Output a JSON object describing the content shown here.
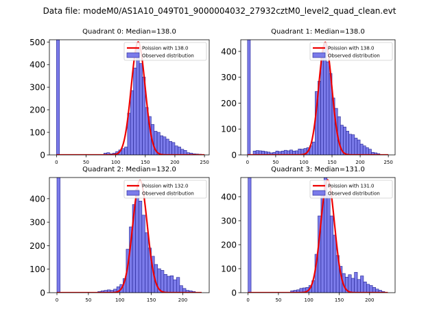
{
  "figure_title": "Data file: modeM0/AS1A10_049T01_9000004032_27932cztM0_level2_quad_clean.evt",
  "colors": {
    "bar_fill": "#7b7bea",
    "bar_edge": "#1f1f8f",
    "line": "#ee0000",
    "axis": "#000000",
    "legend_edge": "#cccccc"
  },
  "chart_data": [
    {
      "type": "bar",
      "title": "Quadrant 0: Median=138.0",
      "legend": [
        "Poission with 138.0",
        "Observed distribution"
      ],
      "legend_position": "top-right",
      "xlim": [
        -12,
        258
      ],
      "ylim": [
        0,
        510
      ],
      "xticks": [
        0,
        50,
        100,
        150,
        200,
        250
      ],
      "yticks": [
        0,
        100,
        200,
        300,
        400,
        500
      ],
      "bin_width": 5,
      "bins": [
        [
          0,
          510
        ],
        [
          80,
          8
        ],
        [
          85,
          10
        ],
        [
          90,
          5
        ],
        [
          95,
          8
        ],
        [
          100,
          15
        ],
        [
          105,
          22
        ],
        [
          110,
          28
        ],
        [
          115,
          35
        ],
        [
          120,
          185
        ],
        [
          125,
          285
        ],
        [
          130,
          385
        ],
        [
          135,
          470
        ],
        [
          140,
          405
        ],
        [
          145,
          345
        ],
        [
          150,
          210
        ],
        [
          155,
          170
        ],
        [
          160,
          135
        ],
        [
          165,
          105
        ],
        [
          170,
          100
        ],
        [
          175,
          85
        ],
        [
          180,
          80
        ],
        [
          185,
          70
        ],
        [
          190,
          60
        ],
        [
          195,
          55
        ],
        [
          200,
          40
        ],
        [
          205,
          35
        ],
        [
          210,
          25
        ],
        [
          215,
          20
        ],
        [
          220,
          10
        ],
        [
          225,
          8
        ],
        [
          230,
          5
        ],
        [
          235,
          4
        ],
        [
          240,
          3
        ]
      ],
      "poisson": {
        "mean": 138.0,
        "peak": 500,
        "sigma": 11.7,
        "x_from": 0,
        "x_to": 250
      }
    },
    {
      "type": "bar",
      "title": "Quadrant 1: Median=138.0",
      "legend": [
        "Poission with 138.0",
        "Observed distribution"
      ],
      "legend_position": "top-right",
      "xlim": [
        -12,
        262
      ],
      "ylim": [
        0,
        445
      ],
      "xticks": [
        0,
        50,
        100,
        150,
        200,
        250
      ],
      "yticks": [
        0,
        100,
        200,
        300,
        400
      ],
      "bin_width": 5,
      "bins": [
        [
          0,
          445
        ],
        [
          10,
          15
        ],
        [
          15,
          17
        ],
        [
          20,
          16
        ],
        [
          25,
          15
        ],
        [
          30,
          13
        ],
        [
          35,
          11
        ],
        [
          40,
          8
        ],
        [
          45,
          10
        ],
        [
          50,
          15
        ],
        [
          55,
          13
        ],
        [
          60,
          15
        ],
        [
          65,
          18
        ],
        [
          70,
          16
        ],
        [
          75,
          19
        ],
        [
          80,
          15
        ],
        [
          85,
          16
        ],
        [
          90,
          23
        ],
        [
          95,
          22
        ],
        [
          100,
          25
        ],
        [
          105,
          28
        ],
        [
          110,
          35
        ],
        [
          115,
          50
        ],
        [
          120,
          245
        ],
        [
          125,
          285
        ],
        [
          130,
          375
        ],
        [
          135,
          430
        ],
        [
          140,
          360
        ],
        [
          145,
          315
        ],
        [
          150,
          220
        ],
        [
          155,
          180
        ],
        [
          160,
          148
        ],
        [
          165,
          115
        ],
        [
          170,
          108
        ],
        [
          175,
          92
        ],
        [
          180,
          80
        ],
        [
          185,
          78
        ],
        [
          190,
          65
        ],
        [
          195,
          58
        ],
        [
          200,
          42
        ],
        [
          205,
          35
        ],
        [
          210,
          28
        ],
        [
          215,
          22
        ],
        [
          220,
          10
        ],
        [
          225,
          8
        ],
        [
          230,
          5
        ]
      ],
      "poisson": {
        "mean": 138.0,
        "peak": 435,
        "sigma": 11.7,
        "x_from": 0,
        "x_to": 250
      }
    },
    {
      "type": "bar",
      "title": "Quadrant 2: Median=132.0",
      "legend": [
        "Poission with 132.0",
        "Observed distribution"
      ],
      "legend_position": "top-right",
      "xlim": [
        -12,
        242
      ],
      "ylim": [
        0,
        490
      ],
      "xticks": [
        0,
        50,
        100,
        150,
        200
      ],
      "yticks": [
        0,
        100,
        200,
        300,
        400
      ],
      "bin_width": 5,
      "bins": [
        [
          0,
          490
        ],
        [
          65,
          5
        ],
        [
          70,
          8
        ],
        [
          75,
          10
        ],
        [
          80,
          12
        ],
        [
          85,
          10
        ],
        [
          90,
          15
        ],
        [
          95,
          25
        ],
        [
          100,
          35
        ],
        [
          105,
          60
        ],
        [
          110,
          185
        ],
        [
          115,
          280
        ],
        [
          120,
          375
        ],
        [
          125,
          440
        ],
        [
          130,
          390
        ],
        [
          135,
          330
        ],
        [
          140,
          255
        ],
        [
          145,
          190
        ],
        [
          150,
          155
        ],
        [
          155,
          120
        ],
        [
          160,
          102
        ],
        [
          165,
          95
        ],
        [
          170,
          78
        ],
        [
          175,
          70
        ],
        [
          180,
          72
        ],
        [
          185,
          55
        ],
        [
          190,
          65
        ],
        [
          195,
          30
        ],
        [
          200,
          18
        ],
        [
          205,
          10
        ],
        [
          210,
          8
        ],
        [
          215,
          5
        ]
      ],
      "poisson": {
        "mean": 132.0,
        "peak": 478,
        "sigma": 11.5,
        "x_from": 0,
        "x_to": 230
      }
    },
    {
      "type": "bar",
      "title": "Quadrant 3: Median=131.0",
      "legend": [
        "Poission with 131.0",
        "Observed distribution"
      ],
      "legend_position": "top-right",
      "xlim": [
        -12,
        242
      ],
      "ylim": [
        0,
        480
      ],
      "xticks": [
        0,
        50,
        100,
        150,
        200
      ],
      "yticks": [
        0,
        100,
        200,
        300,
        400
      ],
      "bin_width": 5,
      "bins": [
        [
          0,
          480
        ],
        [
          70,
          8
        ],
        [
          75,
          10
        ],
        [
          80,
          12
        ],
        [
          85,
          18
        ],
        [
          90,
          20
        ],
        [
          95,
          22
        ],
        [
          100,
          30
        ],
        [
          105,
          50
        ],
        [
          110,
          160
        ],
        [
          115,
          320
        ],
        [
          120,
          420
        ],
        [
          125,
          480
        ],
        [
          130,
          410
        ],
        [
          135,
          320
        ],
        [
          140,
          240
        ],
        [
          145,
          155
        ],
        [
          150,
          110
        ],
        [
          155,
          80
        ],
        [
          160,
          65
        ],
        [
          165,
          75
        ],
        [
          170,
          60
        ],
        [
          175,
          85
        ],
        [
          180,
          55
        ],
        [
          185,
          70
        ],
        [
          190,
          45
        ],
        [
          195,
          35
        ],
        [
          200,
          30
        ],
        [
          205,
          22
        ],
        [
          210,
          15
        ],
        [
          215,
          10
        ],
        [
          220,
          5
        ]
      ],
      "poisson": {
        "mean": 131.0,
        "peak": 470,
        "sigma": 11.4,
        "x_from": 0,
        "x_to": 230
      }
    }
  ]
}
